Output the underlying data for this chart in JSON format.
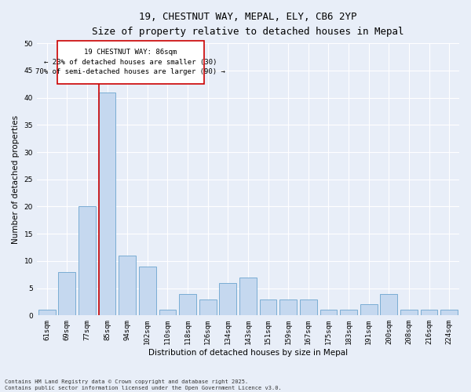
{
  "title_line1": "19, CHESTNUT WAY, MEPAL, ELY, CB6 2YP",
  "title_line2": "Size of property relative to detached houses in Mepal",
  "xlabel": "Distribution of detached houses by size in Mepal",
  "ylabel": "Number of detached properties",
  "bar_labels": [
    "61sqm",
    "69sqm",
    "77sqm",
    "85sqm",
    "94sqm",
    "102sqm",
    "110sqm",
    "118sqm",
    "126sqm",
    "134sqm",
    "143sqm",
    "151sqm",
    "159sqm",
    "167sqm",
    "175sqm",
    "183sqm",
    "191sqm",
    "200sqm",
    "208sqm",
    "216sqm",
    "224sqm"
  ],
  "bar_values": [
    1,
    8,
    20,
    41,
    11,
    9,
    1,
    4,
    3,
    6,
    7,
    3,
    3,
    3,
    1,
    1,
    2,
    4,
    1,
    1,
    1
  ],
  "bar_color": "#c5d8ef",
  "bar_edge_color": "#7aadd4",
  "ylim": [
    0,
    50
  ],
  "yticks": [
    0,
    5,
    10,
    15,
    20,
    25,
    30,
    35,
    40,
    45,
    50
  ],
  "vline_index": 3.0,
  "vline_color": "#cc0000",
  "annotation_text_line1": "19 CHESTNUT WAY: 86sqm",
  "annotation_text_line2": "← 23% of detached houses are smaller (30)",
  "annotation_text_line3": "70% of semi-detached houses are larger (90) →",
  "footer_text": "Contains HM Land Registry data © Crown copyright and database right 2025.\nContains public sector information licensed under the Open Government Licence v3.0.",
  "background_color": "#e8eef8",
  "grid_color": "#ffffff",
  "title_fontsize": 9,
  "subtitle_fontsize": 8,
  "tick_fontsize": 6.5,
  "label_fontsize": 7.5,
  "footer_fontsize": 5,
  "annotation_fontsize": 6.5
}
